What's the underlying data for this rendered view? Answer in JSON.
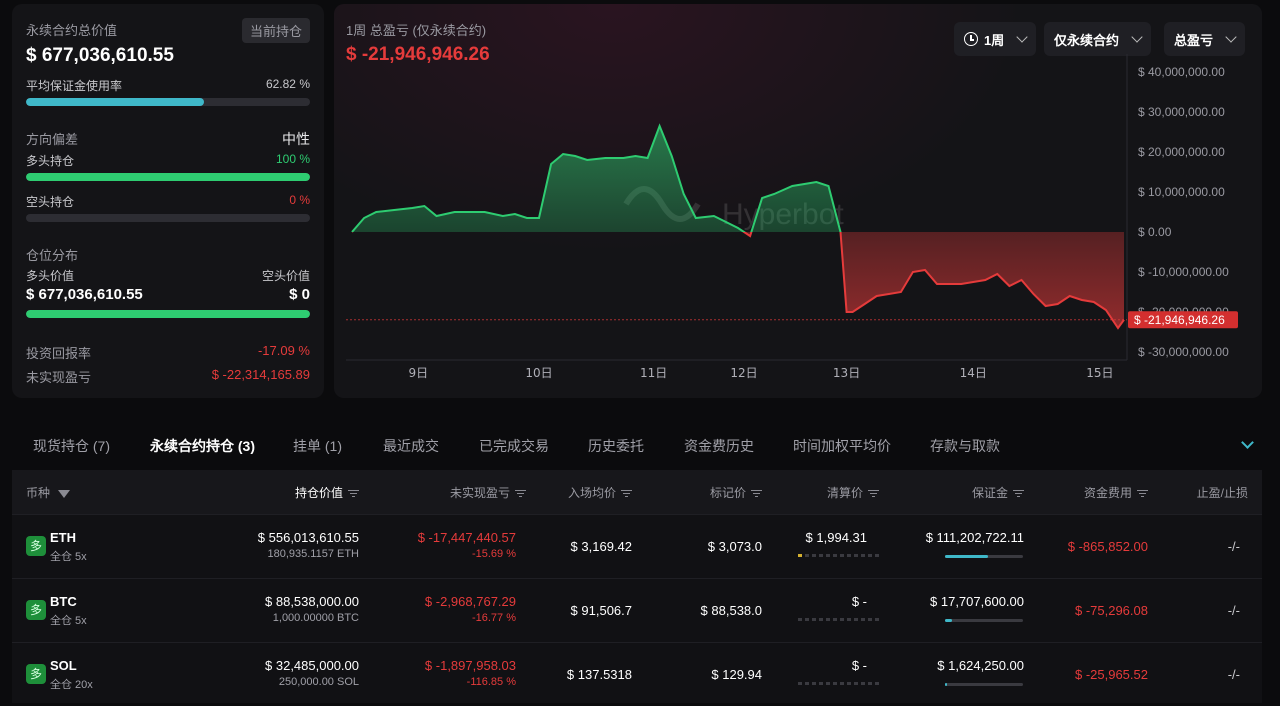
{
  "summary": {
    "total_value_label": "永续合约总价值",
    "current_position_badge": "当前持仓",
    "total_value": "$ 677,036,610.55",
    "margin_usage_label": "平均保证金使用率",
    "margin_usage_value": "62.82 %",
    "margin_usage_fraction": 0.6282,
    "direction_label": "方向偏差",
    "direction_value": "中性",
    "long_label": "多头持仓",
    "long_pct": "100 %",
    "long_fraction": 1.0,
    "short_label": "空头持仓",
    "short_pct": "0 %",
    "short_fraction": 0.0,
    "distribution_label": "仓位分布",
    "long_value_label": "多头价值",
    "short_value_label": "空头价值",
    "long_value": "$ 677,036,610.55",
    "short_value": "$ 0",
    "distribution_long_fraction": 1.0,
    "roi_label": "投资回报率",
    "roi_value": "-17.09 %",
    "unrealized_label": "未实现盈亏",
    "unrealized_value": "$ -22,314,165.89"
  },
  "chart_header": {
    "title": "1周 总盈亏 (仅永续合约)",
    "value": "$ -21,946,946.26",
    "period_select": "1周",
    "scope_select": "仅永续合约",
    "metric_select": "总盈亏",
    "current_tag": "$ -21,946,946.26",
    "watermark": "Hyperbot"
  },
  "chart_data": {
    "type": "area",
    "title": "1周 总盈亏 (仅永续合约)",
    "ylim": [
      -30000000,
      40000000
    ],
    "y_ticks": [
      "$ 40,000,000.00",
      "$ 30,000,000.00",
      "$ 20,000,000.00",
      "$ 10,000,000.00",
      "$ 0.00",
      "$ -10,000,000.00",
      "$ -20,000,000.00",
      "$ -30,000,000.00"
    ],
    "y_tick_values": [
      40000000,
      30000000,
      20000000,
      10000000,
      0,
      -10000000,
      -20000000,
      -30000000
    ],
    "x_ticks": [
      "9日",
      "10日",
      "11日",
      "12日",
      "13日",
      "14日",
      "15日"
    ],
    "x_tick_positions": [
      8.6,
      9.6,
      10.55,
      11.3,
      12.15,
      13.2,
      14.25
    ],
    "x_range": [
      8.0,
      14.45
    ],
    "current_value": -21946946.26,
    "series": [
      {
        "x": [
          8.05,
          8.15,
          8.25,
          8.4,
          8.55,
          8.65,
          8.75,
          8.9,
          9.0,
          9.15,
          9.3,
          9.4,
          9.5,
          9.6,
          9.7,
          9.8,
          9.9,
          10.0,
          10.15,
          10.3,
          10.4,
          10.5,
          10.6,
          10.7,
          10.8,
          10.9,
          11.05,
          11.15,
          11.25,
          11.35,
          11.45,
          11.55,
          11.7,
          11.8,
          11.9,
          12.0,
          12.1,
          12.15,
          12.2,
          12.3,
          12.4,
          12.5,
          12.6,
          12.7,
          12.8,
          12.9,
          13.0,
          13.1,
          13.2,
          13.3,
          13.4,
          13.5,
          13.6,
          13.7,
          13.8,
          13.9,
          14.0,
          14.1,
          14.2,
          14.3,
          14.4,
          14.45
        ],
        "y": [
          0,
          3500000,
          5000000,
          5500000,
          6000000,
          6500000,
          4000000,
          5000000,
          5000000,
          5000000,
          4000000,
          4500000,
          3500000,
          3500000,
          17000000,
          19500000,
          19000000,
          18000000,
          18500000,
          18500000,
          19000000,
          18500000,
          26500000,
          19000000,
          9500000,
          3500000,
          4000000,
          2500000,
          1000000,
          -1000000,
          8500000,
          9500000,
          11500000,
          12000000,
          12500000,
          11500000,
          0,
          -20000000,
          -20000000,
          -18000000,
          -16000000,
          -15500000,
          -15000000,
          -10000000,
          -9500000,
          -13000000,
          -13000000,
          -13000000,
          -12500000,
          -12000000,
          -10500000,
          -13500000,
          -12000000,
          -15500000,
          -18500000,
          -18000000,
          -16000000,
          -17000000,
          -17500000,
          -19500000,
          -24000000,
          -21946946.26
        ]
      }
    ]
  },
  "tabs": [
    "现货持仓 (7)",
    "永续合约持仓 (3)",
    "挂单 (1)",
    "最近成交",
    "已完成交易",
    "历史委托",
    "资金费历史",
    "时间加权平均价",
    "存款与取款"
  ],
  "table": {
    "headers": [
      "币种",
      "持仓价值",
      "未实现盈亏",
      "入场均价",
      "标记价",
      "清算价",
      "保证金",
      "资金费用",
      "止盈/止损"
    ],
    "rows": [
      {
        "side": "多",
        "coin": "ETH",
        "mode": "全仓 5x",
        "value": "$ 556,013,610.55",
        "size": "180,935.1157 ETH",
        "pnl": "$ -17,447,440.57",
        "pnl_pct": "-15.69 %",
        "entry": "$ 3,169.42",
        "mark": "$ 3,073.0",
        "liq": "$ 1,994.31",
        "liq_level": 0.1,
        "margin": "$ 111,202,722.11",
        "margin_fraction": 0.55,
        "funding": "$ -865,852.00",
        "tpsl": "-/-"
      },
      {
        "side": "多",
        "coin": "BTC",
        "mode": "全仓 5x",
        "value": "$ 88,538,000.00",
        "size": "1,000.00000 BTC",
        "pnl": "$ -2,968,767.29",
        "pnl_pct": "-16.77 %",
        "entry": "$ 91,506.7",
        "mark": "$ 88,538.0",
        "liq": "$ -",
        "liq_level": 0,
        "margin": "$ 17,707,600.00",
        "margin_fraction": 0.09,
        "funding": "$ -75,296.08",
        "tpsl": "-/-"
      },
      {
        "side": "多",
        "coin": "SOL",
        "mode": "全仓 20x",
        "value": "$ 32,485,000.00",
        "size": "250,000.00 SOL",
        "pnl": "$ -1,897,958.03",
        "pnl_pct": "-116.85 %",
        "entry": "$ 137.5318",
        "mark": "$ 129.94",
        "liq": "$ -",
        "liq_level": 0,
        "margin": "$ 1,624,250.00",
        "margin_fraction": 0.02,
        "funding": "$ -25,965.52",
        "tpsl": "-/-"
      }
    ]
  },
  "colors": {
    "accent_teal": "#3fb8c9",
    "positive": "#2ecc71",
    "negative": "#e53b3b"
  }
}
